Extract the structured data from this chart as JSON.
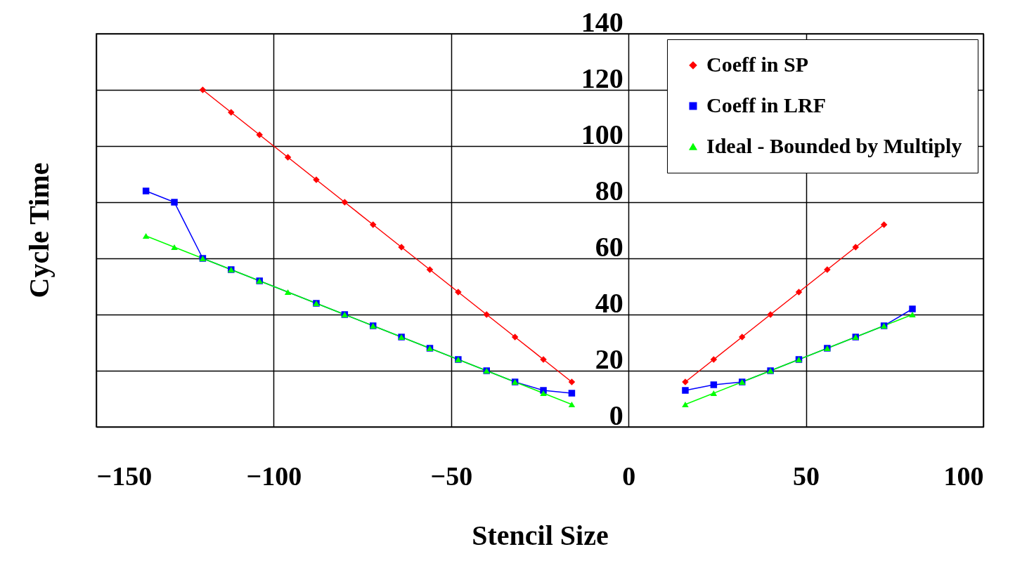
{
  "chart_data": {
    "type": "line",
    "xlabel": "Stencil Size",
    "ylabel": "Cycle Time",
    "xlim": [
      -150,
      100
    ],
    "xticks": [
      -150,
      -100,
      -50,
      0,
      50,
      100
    ],
    "ylim": [
      0,
      140
    ],
    "yticks": [
      0,
      20,
      40,
      60,
      80,
      100,
      120,
      140
    ],
    "grid": true,
    "legend": "top right",
    "series": [
      {
        "name": "Coeff in SP",
        "color": "#ff0000",
        "marker": "diamond",
        "x": [
          -120,
          -112,
          -104,
          -96,
          -88,
          -80,
          -72,
          -64,
          -56,
          -48,
          -40,
          -32,
          -24,
          -16,
          null,
          16,
          24,
          32,
          40,
          48,
          56,
          64,
          72
        ],
        "values": [
          120,
          112,
          104,
          96,
          88,
          80,
          72,
          64,
          56,
          48,
          40,
          32,
          24,
          16,
          null,
          16,
          24,
          32,
          40,
          48,
          56,
          64,
          72
        ]
      },
      {
        "name": "Coeff in LRF",
        "color": "#0000ff",
        "marker": "square",
        "x": [
          -136,
          -128,
          -120,
          -112,
          -104,
          -88,
          -80,
          -72,
          -64,
          -56,
          -48,
          -40,
          -32,
          -24,
          -16,
          null,
          16,
          24,
          32,
          40,
          48,
          56,
          64,
          72,
          80
        ],
        "values": [
          84,
          80,
          60,
          56,
          52,
          44,
          40,
          36,
          32,
          28,
          24,
          20,
          16,
          13,
          12,
          null,
          13,
          15,
          16,
          20,
          24,
          28,
          32,
          36,
          42
        ]
      },
      {
        "name": "Ideal - Bounded by Multiply",
        "color": "#00ff00",
        "marker": "triangle",
        "x": [
          -136,
          -128,
          -120,
          -112,
          -104,
          -96,
          -88,
          -80,
          -72,
          -64,
          -56,
          -48,
          -40,
          -32,
          -24,
          -16,
          null,
          16,
          24,
          32,
          40,
          48,
          56,
          64,
          72,
          80
        ],
        "values": [
          68,
          64,
          60,
          56,
          52,
          48,
          44,
          40,
          36,
          32,
          28,
          24,
          20,
          16,
          12,
          8,
          null,
          8,
          12,
          16,
          20,
          24,
          28,
          32,
          36,
          40
        ]
      }
    ]
  }
}
